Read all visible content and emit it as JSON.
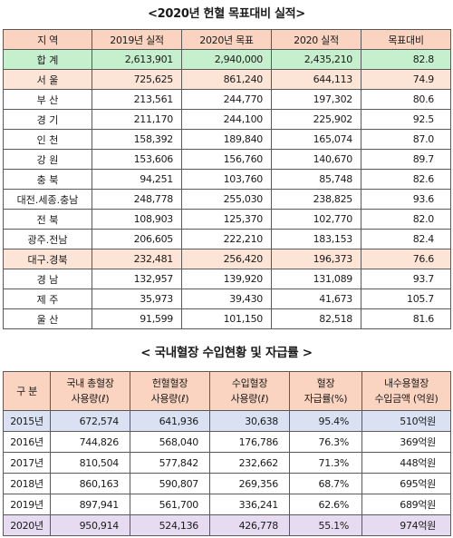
{
  "title1": "<2020년 헌혈 목표대비 실적>",
  "table1": {
    "headers": [
      "지 역",
      "2019년 실적",
      "2020년 목표",
      "2020 실적",
      "목표대비"
    ],
    "rows": [
      [
        "합 계",
        "2,613,901",
        "2,940,000",
        "2,435,210",
        "82.8"
      ],
      [
        "서 울",
        "725,625",
        "861,240",
        "644,113",
        "74.9"
      ],
      [
        "부 산",
        "213,561",
        "244,770",
        "197,302",
        "80.6"
      ],
      [
        "경 기",
        "211,170",
        "244,100",
        "225,902",
        "92.5"
      ],
      [
        "인 천",
        "158,392",
        "189,840",
        "165,074",
        "87.0"
      ],
      [
        "강 원",
        "153,606",
        "156,760",
        "140,670",
        "89.7"
      ],
      [
        "충 북",
        "94,251",
        "103,760",
        "85,748",
        "82.6"
      ],
      [
        "대전.세종.충남",
        "248,778",
        "255,030",
        "238,825",
        "93.6"
      ],
      [
        "전 북",
        "108,903",
        "125,370",
        "102,770",
        "82.0"
      ],
      [
        "광주.전남",
        "206,605",
        "222,210",
        "183,153",
        "82.4"
      ],
      [
        "대구.경북",
        "232,481",
        "256,420",
        "196,373",
        "76.6"
      ],
      [
        "경 남",
        "132,957",
        "139,920",
        "131,089",
        "93.7"
      ],
      [
        "제 주",
        "35,973",
        "39,430",
        "41,673",
        "105.7"
      ],
      [
        "울 산",
        "91,599",
        "101,150",
        "82,518",
        "81.6"
      ]
    ]
  },
  "title2": "< 국내혈장 수입현황 및 자급률 >",
  "table2": {
    "headers": [
      [
        "구 분"
      ],
      [
        "국내 총혈장",
        "사용량(ℓ)"
      ],
      [
        "헌혈혈장",
        "사용량(ℓ)"
      ],
      [
        "수입혈장",
        "사용량(ℓ)"
      ],
      [
        "혈장",
        "자급률(%)"
      ],
      [
        "내수용혈장",
        "수입금액 (억원)"
      ]
    ],
    "rows": [
      [
        "2015년",
        "672,574",
        "641,936",
        "30,638",
        "95.4%",
        "510억원"
      ],
      [
        "2016년",
        "744,826",
        "568,040",
        "176,786",
        "76.3%",
        "369억원"
      ],
      [
        "2017년",
        "810,504",
        "577,842",
        "232,662",
        "71.3%",
        "448억원"
      ],
      [
        "2018년",
        "860,163",
        "590,807",
        "269,356",
        "68.7%",
        "695억원"
      ],
      [
        "2019년",
        "897,941",
        "561,700",
        "336,241",
        "62.6%",
        "689억원"
      ],
      [
        "2020년",
        "950,914",
        "524,136",
        "426,778",
        "55.1%",
        "974억원"
      ]
    ]
  }
}
